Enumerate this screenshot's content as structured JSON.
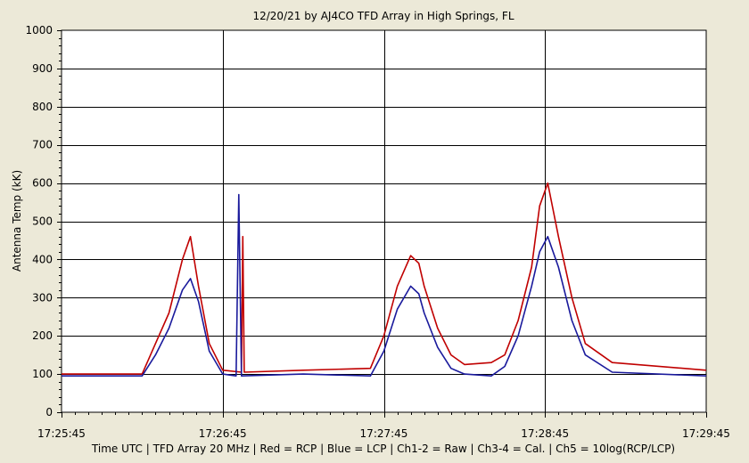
{
  "chart_data": {
    "type": "line",
    "title": "12/20/21  by  AJ4CO TFD Array  in  High Springs, FL",
    "ylabel": "Antenna Temp (kK)",
    "xlabel": "Time UTC  |  TFD Array 20 MHz  |  Red = RCP  |  Blue = LCP  |  Ch1-2 = Raw  |  Ch3-4 = Cal.  |  Ch5 = 10log(RCP/LCP)",
    "x_ticks": [
      "17:25:45",
      "17:26:45",
      "17:27:45",
      "17:28:45",
      "17:29:45"
    ],
    "x_range": [
      "17:25:45",
      "17:29:45"
    ],
    "y_ticks": [
      0,
      100,
      200,
      300,
      400,
      500,
      600,
      700,
      800,
      900,
      1000
    ],
    "ylim": [
      0,
      1000
    ],
    "grid": true,
    "series": [
      {
        "name": "RCP",
        "color": "#c00000",
        "x": [
          "17:25:45",
          "17:26:15",
          "17:26:20",
          "17:26:25",
          "17:26:30",
          "17:26:33",
          "17:26:36",
          "17:26:40",
          "17:26:45",
          "17:26:52",
          "17:26:52.5",
          "17:26:53",
          "17:27:15",
          "17:27:40",
          "17:27:45",
          "17:27:50",
          "17:27:55",
          "17:27:58",
          "17:28:00",
          "17:28:05",
          "17:28:10",
          "17:28:15",
          "17:28:25",
          "17:28:30",
          "17:28:35",
          "17:28:40",
          "17:28:43",
          "17:28:46",
          "17:28:50",
          "17:28:55",
          "17:29:00",
          "17:29:10",
          "17:29:45"
        ],
        "values": [
          100,
          100,
          180,
          260,
          400,
          460,
          330,
          180,
          110,
          105,
          460,
          105,
          110,
          115,
          200,
          330,
          410,
          390,
          330,
          220,
          150,
          125,
          130,
          150,
          240,
          380,
          540,
          600,
          460,
          300,
          180,
          130,
          110
        ]
      },
      {
        "name": "LCP",
        "color": "#1a1a9c",
        "x": [
          "17:25:45",
          "17:26:15",
          "17:26:20",
          "17:26:25",
          "17:26:30",
          "17:26:33",
          "17:26:36",
          "17:26:40",
          "17:26:45",
          "17:26:50",
          "17:26:51",
          "17:26:52",
          "17:27:15",
          "17:27:40",
          "17:27:45",
          "17:27:50",
          "17:27:55",
          "17:27:58",
          "17:28:00",
          "17:28:05",
          "17:28:10",
          "17:28:15",
          "17:28:25",
          "17:28:30",
          "17:28:35",
          "17:28:40",
          "17:28:43",
          "17:28:46",
          "17:28:50",
          "17:28:55",
          "17:29:00",
          "17:29:10",
          "17:29:45"
        ],
        "values": [
          95,
          95,
          150,
          220,
          320,
          350,
          290,
          160,
          100,
          95,
          570,
          95,
          100,
          95,
          160,
          270,
          330,
          310,
          260,
          170,
          115,
          100,
          95,
          120,
          200,
          330,
          420,
          460,
          380,
          240,
          150,
          105,
          95
        ]
      }
    ]
  }
}
